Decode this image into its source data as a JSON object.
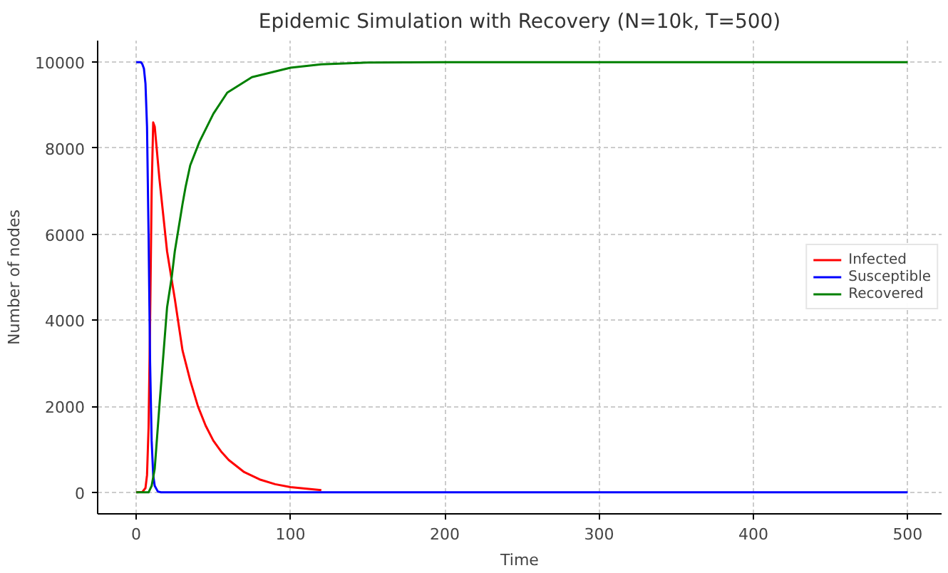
{
  "chart_data": {
    "type": "line",
    "title": "Epidemic Simulation with Recovery (N=10k, T=500)",
    "xlabel": "Time",
    "ylabel": "Number of nodes",
    "series": [
      {
        "name": "Infected",
        "color": "#ff0000",
        "x": [
          0,
          4,
          6,
          7,
          8,
          9,
          10,
          11,
          12,
          15,
          20,
          25,
          30,
          35,
          40,
          45,
          50,
          55,
          60,
          70,
          80,
          90,
          100,
          120
        ],
        "values": [
          0,
          10,
          100,
          400,
          1500,
          4000,
          7000,
          8600,
          8500,
          7300,
          5600,
          4500,
          3300,
          2600,
          2000,
          1550,
          1200,
          950,
          750,
          470,
          300,
          190,
          120,
          50
        ]
      },
      {
        "name": "Susceptible",
        "color": "#0000ff",
        "x": [
          0,
          3,
          4,
          5,
          6,
          7,
          8,
          9,
          10,
          11,
          12,
          14,
          16,
          500
        ],
        "values": [
          10000,
          10000,
          9950,
          9850,
          9500,
          8500,
          6000,
          3000,
          1200,
          400,
          150,
          20,
          0,
          0
        ]
      },
      {
        "name": "Recovered",
        "color": "#008000",
        "x": [
          0,
          8,
          10,
          12,
          15,
          20,
          23,
          25,
          30,
          32,
          35,
          41,
          50,
          59,
          75,
          100,
          120,
          150,
          200,
          500
        ],
        "values": [
          0,
          0,
          150,
          550,
          2000,
          4300,
          5000,
          5600,
          6700,
          7100,
          7600,
          8150,
          8800,
          9290,
          9650,
          9870,
          9950,
          9990,
          10000,
          10000
        ]
      }
    ],
    "xlim": [
      -25,
      522
    ],
    "ylim": [
      -500,
      10500
    ],
    "xticks": [
      0,
      100,
      200,
      300,
      400,
      500
    ],
    "yticks": [
      0,
      2000,
      4000,
      6000,
      8000,
      10000
    ],
    "grid": true,
    "legend": "right",
    "line_style": "solid"
  }
}
